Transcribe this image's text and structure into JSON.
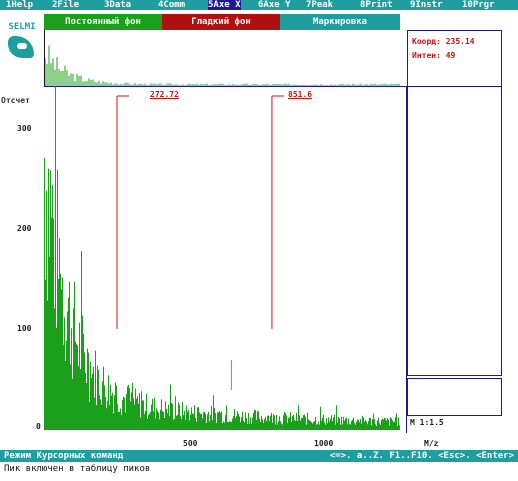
{
  "menu": [
    {
      "label": "1Help",
      "active": false
    },
    {
      "label": "2File",
      "active": false
    },
    {
      "label": "3Data",
      "active": false
    },
    {
      "label": "4Comm",
      "active": false
    },
    {
      "label": "5Axe X",
      "active": true
    },
    {
      "label": "6Axe Y",
      "active": false
    },
    {
      "label": "7Peak",
      "active": false
    },
    {
      "label": "8Print",
      "active": false
    },
    {
      "label": "9Instr",
      "active": false
    },
    {
      "label": "10Prgr",
      "active": false
    }
  ],
  "modes": [
    {
      "label": "Постоянный фон",
      "color": "#1aa01a"
    },
    {
      "label": "Гладкий фон",
      "color": "#b01010"
    },
    {
      "label": "Маркировка",
      "color": "#1f9ea0"
    }
  ],
  "logo": {
    "text": "SELMI"
  },
  "info": {
    "coord": "Коорд: 235.14",
    "intens": "Интен: 49"
  },
  "y_axis_label": "Отсчет",
  "marker_labels": [
    "272.72",
    "851.6"
  ],
  "scale": "M 1:1.5",
  "status": {
    "left": "Режим Курсорных команд",
    "right": "<=>. a..Z. F1..F10. <Esc>. <Enter>"
  },
  "message": "Пик включен в таблицу пиков",
  "colors": {
    "spectrum": "#1aa01a",
    "marker": "#cc1111",
    "pink": "#e040e0",
    "frame": "#1a1a99",
    "bar": "#1f9ea0"
  },
  "chart_data": {
    "type": "bar",
    "xlabel": "M/z",
    "ylabel": "Отсчет",
    "xticks": [
      500,
      1000
    ],
    "yticks": [
      100,
      200,
      300
    ],
    "xlim": [
      0,
      1330
    ],
    "ylim": [
      0,
      340
    ],
    "highlight_peaks": [
      {
        "x": 272.72,
        "label": "272.72",
        "color": "#cc1111"
      },
      {
        "x": 851.6,
        "label": "851.6",
        "color": "#cc1111"
      },
      {
        "x": 700,
        "color": "#e040e0"
      }
    ]
  }
}
